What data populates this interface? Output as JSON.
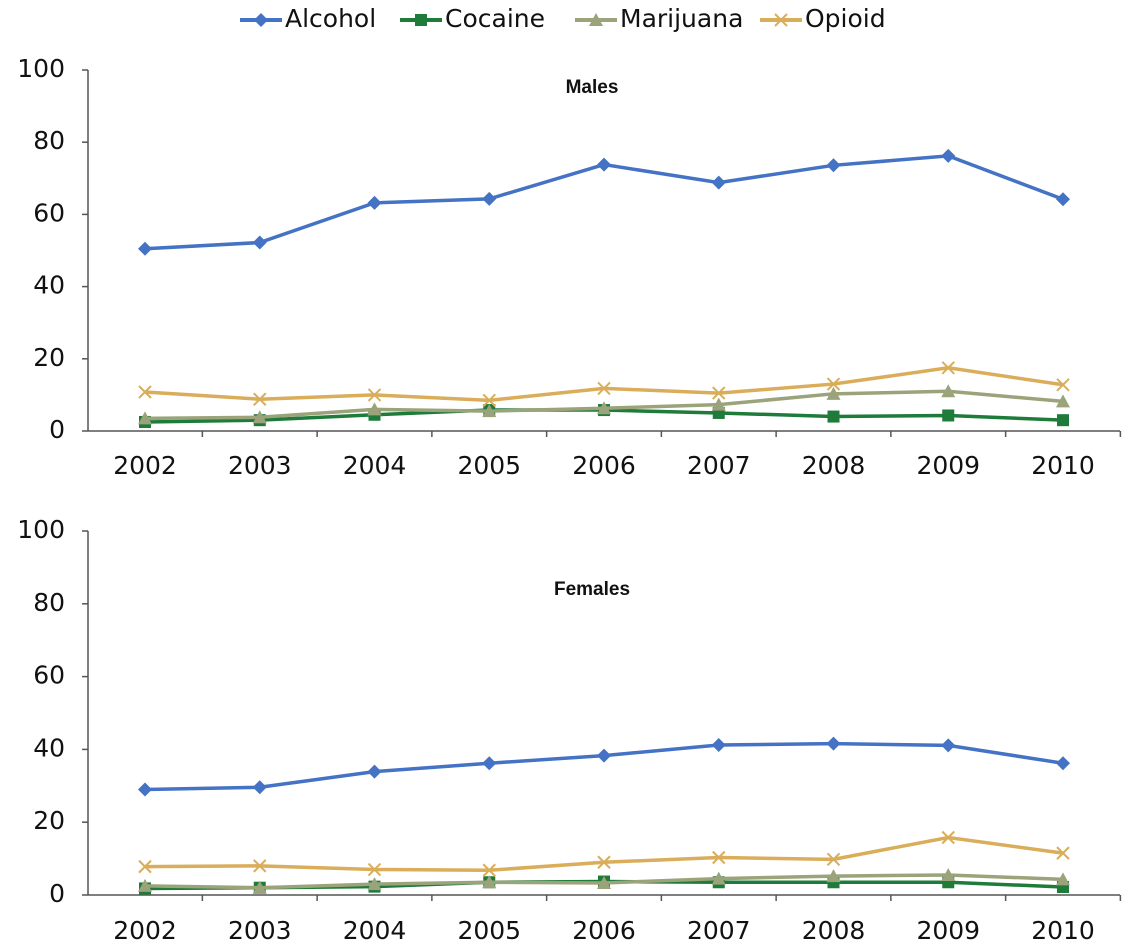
{
  "chart_data": [
    {
      "type": "line",
      "title": "Males",
      "categories": [
        "2002",
        "2003",
        "2004",
        "2005",
        "2006",
        "2007",
        "2008",
        "2009",
        "2010"
      ],
      "ylim": [
        0,
        100
      ],
      "yticks": [
        0,
        20,
        40,
        60,
        80,
        100
      ],
      "series": [
        {
          "name": "Alcohol",
          "color": "#4472c4",
          "marker": "diamond",
          "values": [
            50.5,
            52.2,
            63.2,
            64.3,
            73.8,
            68.8,
            73.6,
            76.2,
            64.2
          ]
        },
        {
          "name": "Cocaine",
          "color": "#1e7b3a",
          "marker": "square",
          "values": [
            2.5,
            3,
            4.5,
            5.8,
            5.8,
            5,
            4,
            4.3,
            3
          ]
        },
        {
          "name": "Marijuana",
          "color": "#9aa37a",
          "marker": "triangle",
          "values": [
            3.5,
            3.8,
            6,
            5.5,
            6.3,
            7.3,
            10.3,
            11,
            8.2
          ]
        },
        {
          "name": "Opioid",
          "color": "#d9ad5a",
          "marker": "x",
          "values": [
            10.8,
            8.8,
            10,
            8.5,
            11.8,
            10.5,
            13,
            17.5,
            12.8
          ]
        }
      ]
    },
    {
      "type": "line",
      "title": "Females",
      "categories": [
        "2002",
        "2003",
        "2004",
        "2005",
        "2006",
        "2007",
        "2008",
        "2009",
        "2010"
      ],
      "ylim": [
        0,
        100
      ],
      "yticks": [
        0,
        20,
        40,
        60,
        80,
        100
      ],
      "series": [
        {
          "color": "#4472c4",
          "marker": "diamond",
          "values": [
            29,
            29.6,
            33.9,
            36.2,
            38.3,
            41.2,
            41.6,
            41.1,
            36.2
          ]
        },
        {
          "color": "#1e7b3a",
          "marker": "square",
          "values": [
            1.8,
            2,
            2.3,
            3.5,
            3.7,
            3.5,
            3.5,
            3.5,
            2.2
          ]
        },
        {
          "color": "#9aa37a",
          "marker": "triangle",
          "values": [
            2.5,
            2,
            3,
            3.5,
            3.3,
            4.5,
            5.2,
            5.5,
            4.3
          ]
        },
        {
          "color": "#d9ad5a",
          "marker": "x",
          "values": [
            7.8,
            8,
            7,
            6.8,
            9,
            10.3,
            9.8,
            15.8,
            11.5
          ]
        }
      ]
    }
  ]
}
